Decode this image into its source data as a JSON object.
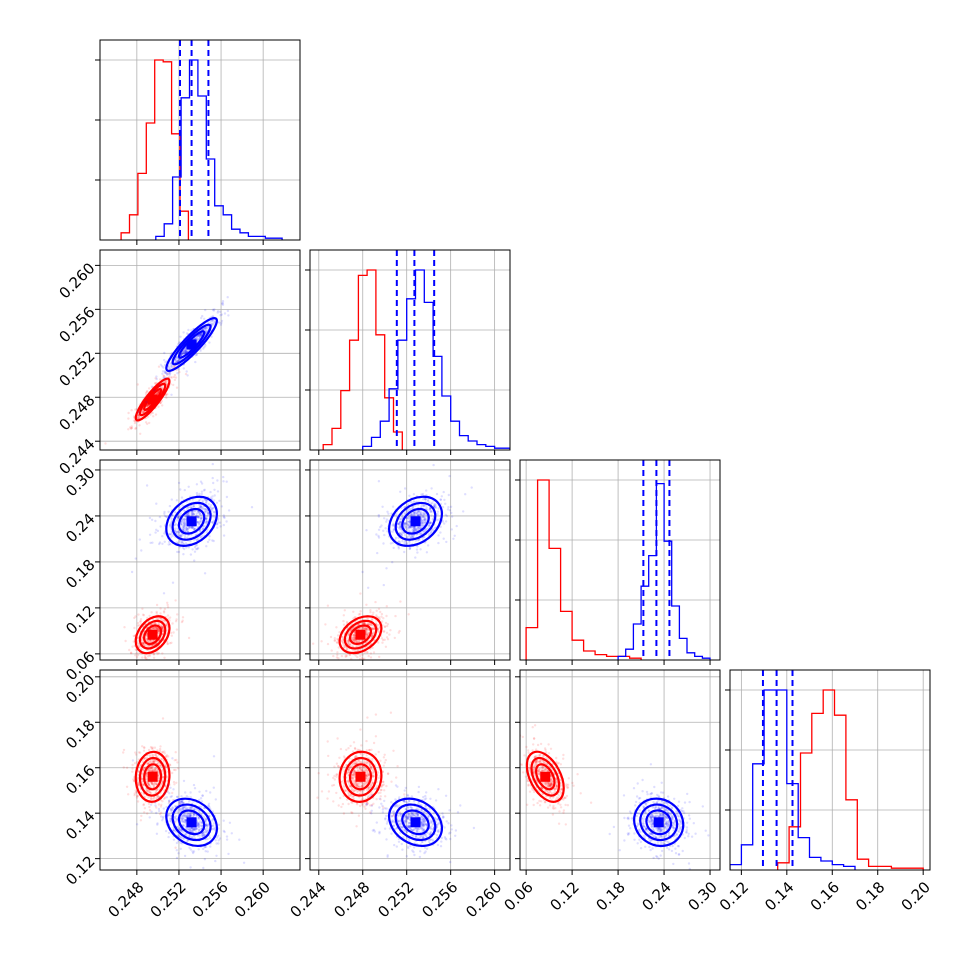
{
  "chart_data": {
    "type": "scatter",
    "title": "",
    "plot_kind": "corner plot of 4 parameters (two posterior samples)",
    "grid": true,
    "colors": {
      "series_a": "#ff0000",
      "series_b": "#0000ff"
    },
    "parameters": [
      {
        "id": "p1",
        "range": [
          0.2445,
          0.2635
        ],
        "ticks": [
          0.248,
          0.252,
          0.256,
          0.26
        ],
        "ticklabels": [
          "0.248",
          "0.252",
          "0.256",
          "0.260"
        ]
      },
      {
        "id": "p2",
        "range": [
          0.2432,
          0.2614
        ],
        "ticks": [
          0.244,
          0.248,
          0.252,
          0.256,
          0.26
        ],
        "ticklabels": [
          "0.244",
          "0.248",
          "0.252",
          "0.256",
          "0.260"
        ]
      },
      {
        "id": "p3",
        "range": [
          0.052,
          0.313
        ],
        "ticks": [
          0.06,
          0.12,
          0.18,
          0.24,
          0.3
        ],
        "ticklabels": [
          "0.06",
          "0.12",
          "0.18",
          "0.24",
          "0.30"
        ]
      },
      {
        "id": "p4",
        "range": [
          0.115,
          0.203
        ],
        "ticks": [
          0.12,
          0.14,
          0.16,
          0.18,
          0.2
        ],
        "ticklabels": [
          "0.12",
          "0.14",
          "0.16",
          "0.18",
          "0.20"
        ]
      }
    ],
    "series": [
      {
        "color": "#ff0000",
        "means": [
          0.2495,
          0.2478,
          0.085,
          0.156
        ],
        "sigmas": [
          0.0008,
          0.00095,
          0.012,
          0.0055
        ],
        "correlations": {
          "p1_p2": 0.88,
          "p1_p3": 0.35,
          "p2_p3": 0.35,
          "p1_p4": 0.05,
          "p2_p4": 0.05,
          "p3_p4": -0.45
        },
        "histograms": [
          {
            "bins": [
              0.2465,
              0.2473,
              0.2481,
              0.2489,
              0.2497,
              0.2505,
              0.2513,
              0.2521,
              0.2529
            ],
            "counts": [
              0.04,
              0.14,
              0.37,
              0.65,
              1.0,
              0.99,
              0.59,
              0.16
            ]
          },
          {
            "bins": [
              0.2444,
              0.2452,
              0.246,
              0.2468,
              0.2476,
              0.2484,
              0.2492,
              0.25,
              0.2508,
              0.2516
            ],
            "counts": [
              0.03,
              0.12,
              0.33,
              0.61,
              0.97,
              1.0,
              0.64,
              0.29,
              0.1
            ]
          },
          {
            "bins": [
              0.06,
              0.075,
              0.09,
              0.105,
              0.12,
              0.135,
              0.15,
              0.165,
              0.18,
              0.195,
              0.21
            ],
            "counts": [
              0.18,
              1.0,
              0.62,
              0.27,
              0.11,
              0.05,
              0.03,
              0.02,
              0.02,
              0.01
            ]
          },
          {
            "bins": [
              0.136,
              0.141,
              0.146,
              0.151,
              0.156,
              0.161,
              0.166,
              0.171,
              0.176,
              0.186,
              0.2
            ],
            "counts": [
              0.04,
              0.24,
              0.65,
              0.87,
              1.0,
              0.86,
              0.39,
              0.06,
              0.02,
              0.01
            ]
          }
        ]
      },
      {
        "color": "#0000ff",
        "means": [
          0.2532,
          0.2528,
          0.233,
          0.136
        ],
        "sigmas": [
          0.0012,
          0.0012,
          0.016,
          0.0052
        ],
        "correlations": {
          "p1_p2": 0.9,
          "p1_p3": 0.3,
          "p2_p3": 0.3,
          "p1_p4": -0.25,
          "p2_p4": -0.25,
          "p3_p4": -0.1
        },
        "quantiles": [
          [
            0.2521,
            0.2532,
            0.2548
          ],
          [
            0.2511,
            0.2527,
            0.2545
          ],
          [
            0.213,
            0.23,
            0.247
          ],
          [
            0.1295,
            0.1355,
            0.1425
          ]
        ],
        "histograms": [
          {
            "bins": [
              0.2498,
              0.2506,
              0.2514,
              0.2522,
              0.253,
              0.2538,
              0.2546,
              0.2554,
              0.2562,
              0.257,
              0.2578,
              0.2586,
              0.2594,
              0.2602,
              0.261,
              0.2618
            ],
            "counts": [
              0.02,
              0.09,
              0.35,
              0.79,
              1.0,
              0.8,
              0.45,
              0.19,
              0.14,
              0.06,
              0.04,
              0.02,
              0.02,
              0.01,
              0.01
            ]
          },
          {
            "bins": [
              0.248,
              0.2488,
              0.2496,
              0.2504,
              0.2512,
              0.252,
              0.2528,
              0.2536,
              0.2544,
              0.2552,
              0.256,
              0.2568,
              0.2576,
              0.2584,
              0.2592,
              0.26,
              0.2614
            ],
            "counts": [
              0.02,
              0.07,
              0.16,
              0.34,
              0.61,
              0.84,
              1.0,
              0.82,
              0.52,
              0.3,
              0.16,
              0.08,
              0.05,
              0.03,
              0.02,
              0.01
            ]
          },
          {
            "bins": [
              0.18,
              0.19,
              0.2,
              0.21,
              0.22,
              0.23,
              0.24,
              0.25,
              0.26,
              0.27,
              0.28,
              0.29,
              0.3
            ],
            "counts": [
              0.02,
              0.06,
              0.2,
              0.41,
              0.58,
              0.98,
              0.66,
              0.3,
              0.12,
              0.04,
              0.02,
              0.01
            ]
          },
          {
            "bins": [
              0.115,
              0.12,
              0.125,
              0.13,
              0.135,
              0.14,
              0.145,
              0.15,
              0.155,
              0.16,
              0.165,
              0.17
            ],
            "counts": [
              0.03,
              0.14,
              0.59,
              1.0,
              1.0,
              0.48,
              0.18,
              0.07,
              0.05,
              0.03,
              0.02
            ]
          }
        ]
      }
    ]
  }
}
